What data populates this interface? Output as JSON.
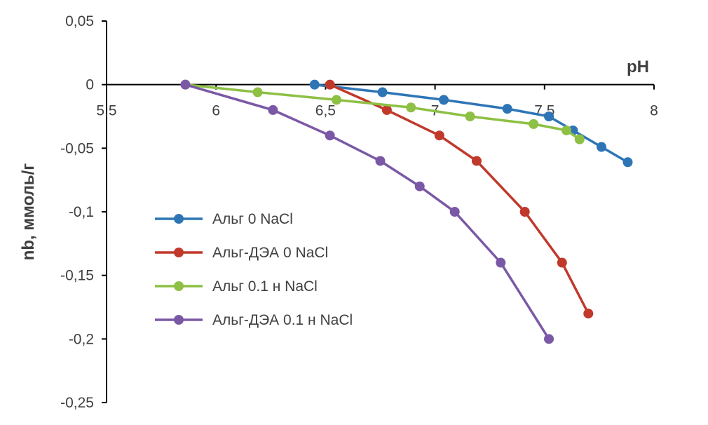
{
  "chart_data": {
    "type": "line",
    "xlabel": "pH",
    "ylabel": "nb, ммоль/г",
    "xlim": [
      5.5,
      8
    ],
    "ylim": [
      -0.25,
      0.05
    ],
    "x_ticks": [
      "5,5",
      "6",
      "6,5",
      "7",
      "7,5",
      "8"
    ],
    "x_tick_values": [
      5.5,
      6,
      6.5,
      7,
      7.5,
      8
    ],
    "y_ticks": [
      "0,05",
      "0",
      "-0,05",
      "-0,1",
      "-0,15",
      "-0,2",
      "-0,25"
    ],
    "y_tick_values": [
      0.05,
      0,
      -0.05,
      -0.1,
      -0.15,
      -0.2,
      -0.25
    ],
    "grid": false,
    "legend_position": "left",
    "series": [
      {
        "name": "Альг 0 NaCl",
        "color": "#2E75B6",
        "points": [
          [
            6.45,
            0
          ],
          [
            6.76,
            -0.006
          ],
          [
            7.04,
            -0.012
          ],
          [
            7.33,
            -0.019
          ],
          [
            7.52,
            -0.025
          ],
          [
            7.63,
            -0.036
          ],
          [
            7.76,
            -0.049
          ],
          [
            7.88,
            -0.061
          ]
        ]
      },
      {
        "name": "Альг-ДЭА 0 NaCl",
        "color": "#C0392B",
        "points": [
          [
            6.52,
            0
          ],
          [
            6.78,
            -0.02
          ],
          [
            7.02,
            -0.04
          ],
          [
            7.19,
            -0.06
          ],
          [
            7.41,
            -0.1
          ],
          [
            7.58,
            -0.14
          ],
          [
            7.7,
            -0.18
          ]
        ]
      },
      {
        "name": "Альг 0.1 н NaCl",
        "color": "#8DC044",
        "points": [
          [
            5.86,
            0
          ],
          [
            6.19,
            -0.006
          ],
          [
            6.55,
            -0.012
          ],
          [
            6.89,
            -0.018
          ],
          [
            7.16,
            -0.025
          ],
          [
            7.45,
            -0.031
          ],
          [
            7.6,
            -0.036
          ],
          [
            7.66,
            -0.043
          ]
        ]
      },
      {
        "name": "Альг-ДЭА 0.1 н NaCl",
        "color": "#7B58A6",
        "points": [
          [
            5.86,
            0
          ],
          [
            6.26,
            -0.02
          ],
          [
            6.52,
            -0.04
          ],
          [
            6.75,
            -0.06
          ],
          [
            6.93,
            -0.08
          ],
          [
            7.09,
            -0.1
          ],
          [
            7.3,
            -0.14
          ],
          [
            7.52,
            -0.2
          ]
        ]
      }
    ]
  }
}
